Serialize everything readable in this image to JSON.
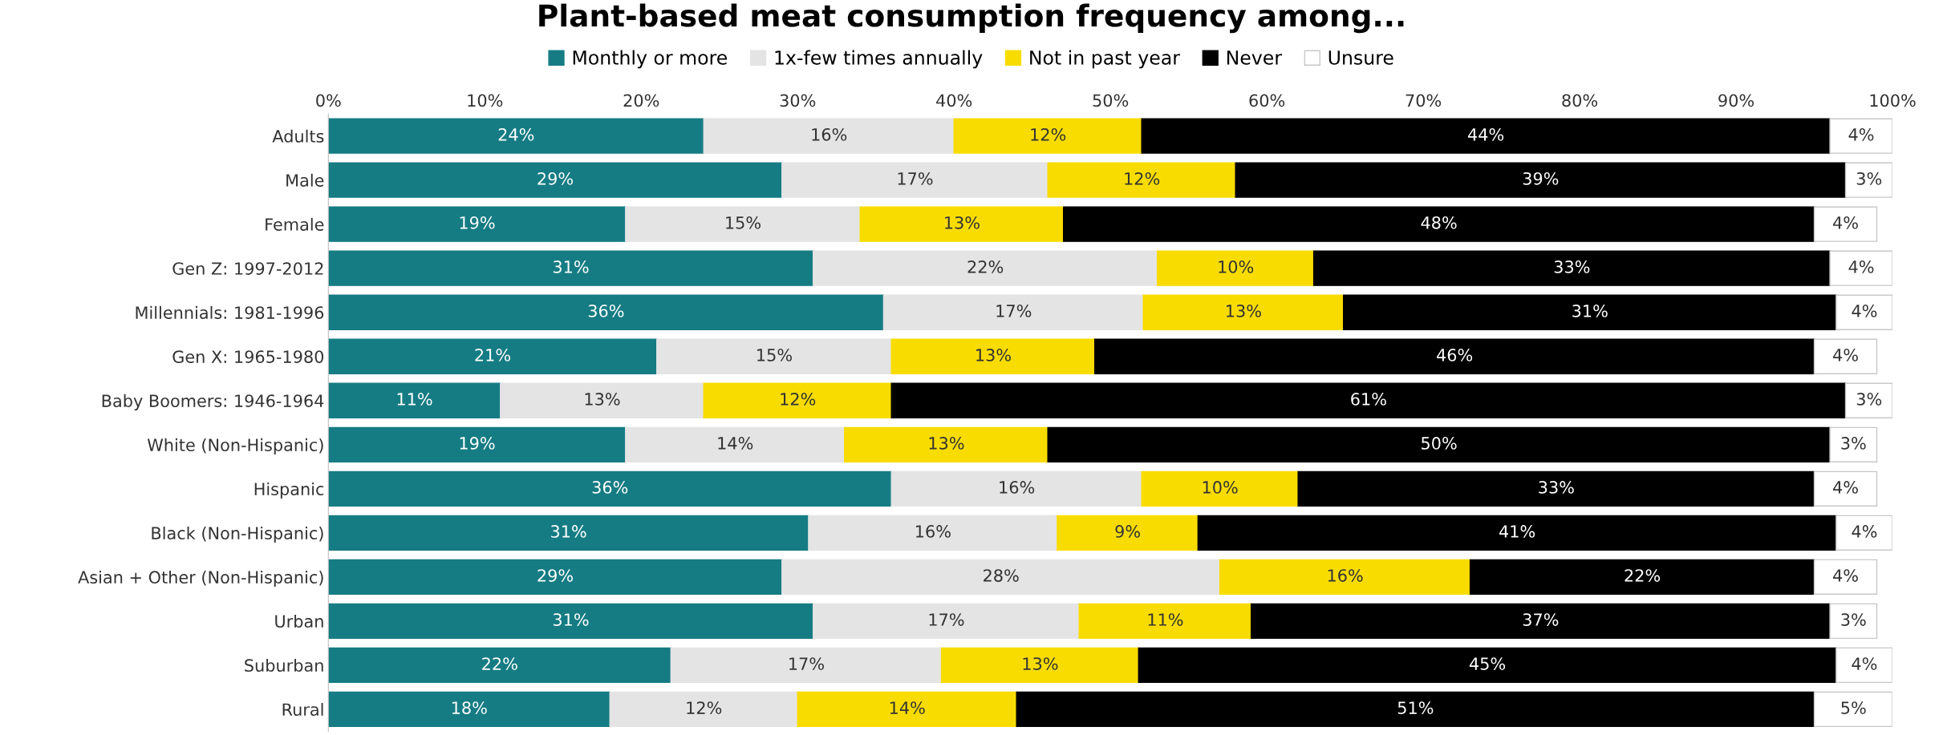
{
  "chart_data": {
    "type": "bar",
    "orientation": "horizontal",
    "stacked": true,
    "title": "Plant-based meat consumption frequency among...",
    "legend": "top",
    "grid": false,
    "categories": [
      "Adults",
      "Male",
      "Female",
      "Gen Z: 1997-2012",
      "Millennials: 1981-1996",
      "Gen X: 1965-1980",
      "Baby Boomers: 1946-1964",
      "White (Non-Hispanic)",
      "Hispanic",
      "Black (Non-Hispanic)",
      "Asian + Other (Non-Hispanic)",
      "Urban",
      "Suburban",
      "Rural"
    ],
    "xlim": [
      0,
      100
    ],
    "xticks": [
      {
        "value": 0,
        "label": "0%"
      },
      {
        "value": 10,
        "label": "10%"
      },
      {
        "value": 20,
        "label": "20%"
      },
      {
        "value": 30,
        "label": "30%"
      },
      {
        "value": 40,
        "label": "40%"
      },
      {
        "value": 50,
        "label": "50%"
      },
      {
        "value": 60,
        "label": "60%"
      },
      {
        "value": 70,
        "label": "70%"
      },
      {
        "value": 80,
        "label": "80%"
      },
      {
        "value": 90,
        "label": "90%"
      },
      {
        "value": 100,
        "label": "100%"
      }
    ],
    "series": [
      {
        "name": "Monthly or more",
        "color": "#167c84",
        "values": [
          24,
          29,
          19,
          31,
          35.5,
          21,
          11,
          19,
          36,
          30.7,
          29,
          31,
          21.9,
          18
        ],
        "value_labels": [
          "24%",
          "29%",
          "19%",
          "31%",
          "36%",
          "21%",
          "11%",
          "19%",
          "36%",
          "31%",
          "29%",
          "31%",
          "22%",
          "18%"
        ]
      },
      {
        "name": "1x-few times annually",
        "color": "#e4e4e4",
        "values": [
          16,
          17,
          15,
          22,
          16.6,
          15,
          13,
          14,
          16,
          15.9,
          28,
          17,
          17.3,
          12
        ],
        "value_labels": [
          "16%",
          "17%",
          "15%",
          "22%",
          "17%",
          "15%",
          "13%",
          "14%",
          "16%",
          "16%",
          "28%",
          "17%",
          "17%",
          "12%"
        ]
      },
      {
        "name": "Not in past year",
        "color": "#f8dc00",
        "values": [
          12,
          12,
          13,
          10,
          12.8,
          13,
          12,
          13,
          10,
          9,
          16,
          11,
          12.6,
          14
        ],
        "value_labels": [
          "12%",
          "12%",
          "13%",
          "10%",
          "13%",
          "13%",
          "12%",
          "13%",
          "10%",
          "9%",
          "16%",
          "11%",
          "13%",
          "14%"
        ]
      },
      {
        "name": "Never",
        "color": "#000000",
        "values": [
          44,
          39,
          48,
          33,
          31.5,
          46,
          61,
          50,
          33,
          40.8,
          22,
          37,
          44.6,
          51
        ],
        "value_labels": [
          "44%",
          "39%",
          "48%",
          "33%",
          "31%",
          "46%",
          "61%",
          "50%",
          "33%",
          "41%",
          "22%",
          "37%",
          "45%",
          "51%"
        ]
      },
      {
        "name": "Unsure",
        "color": "#ffffff",
        "values": [
          4,
          3,
          4,
          4,
          3.6,
          4,
          3,
          3,
          4,
          3.6,
          4,
          3,
          3.6,
          5
        ],
        "value_labels": [
          "4%",
          "3%",
          "4%",
          "4%",
          "4%",
          "4%",
          "3%",
          "3%",
          "4%",
          "4%",
          "4%",
          "3%",
          "4%",
          "5%"
        ]
      }
    ]
  }
}
